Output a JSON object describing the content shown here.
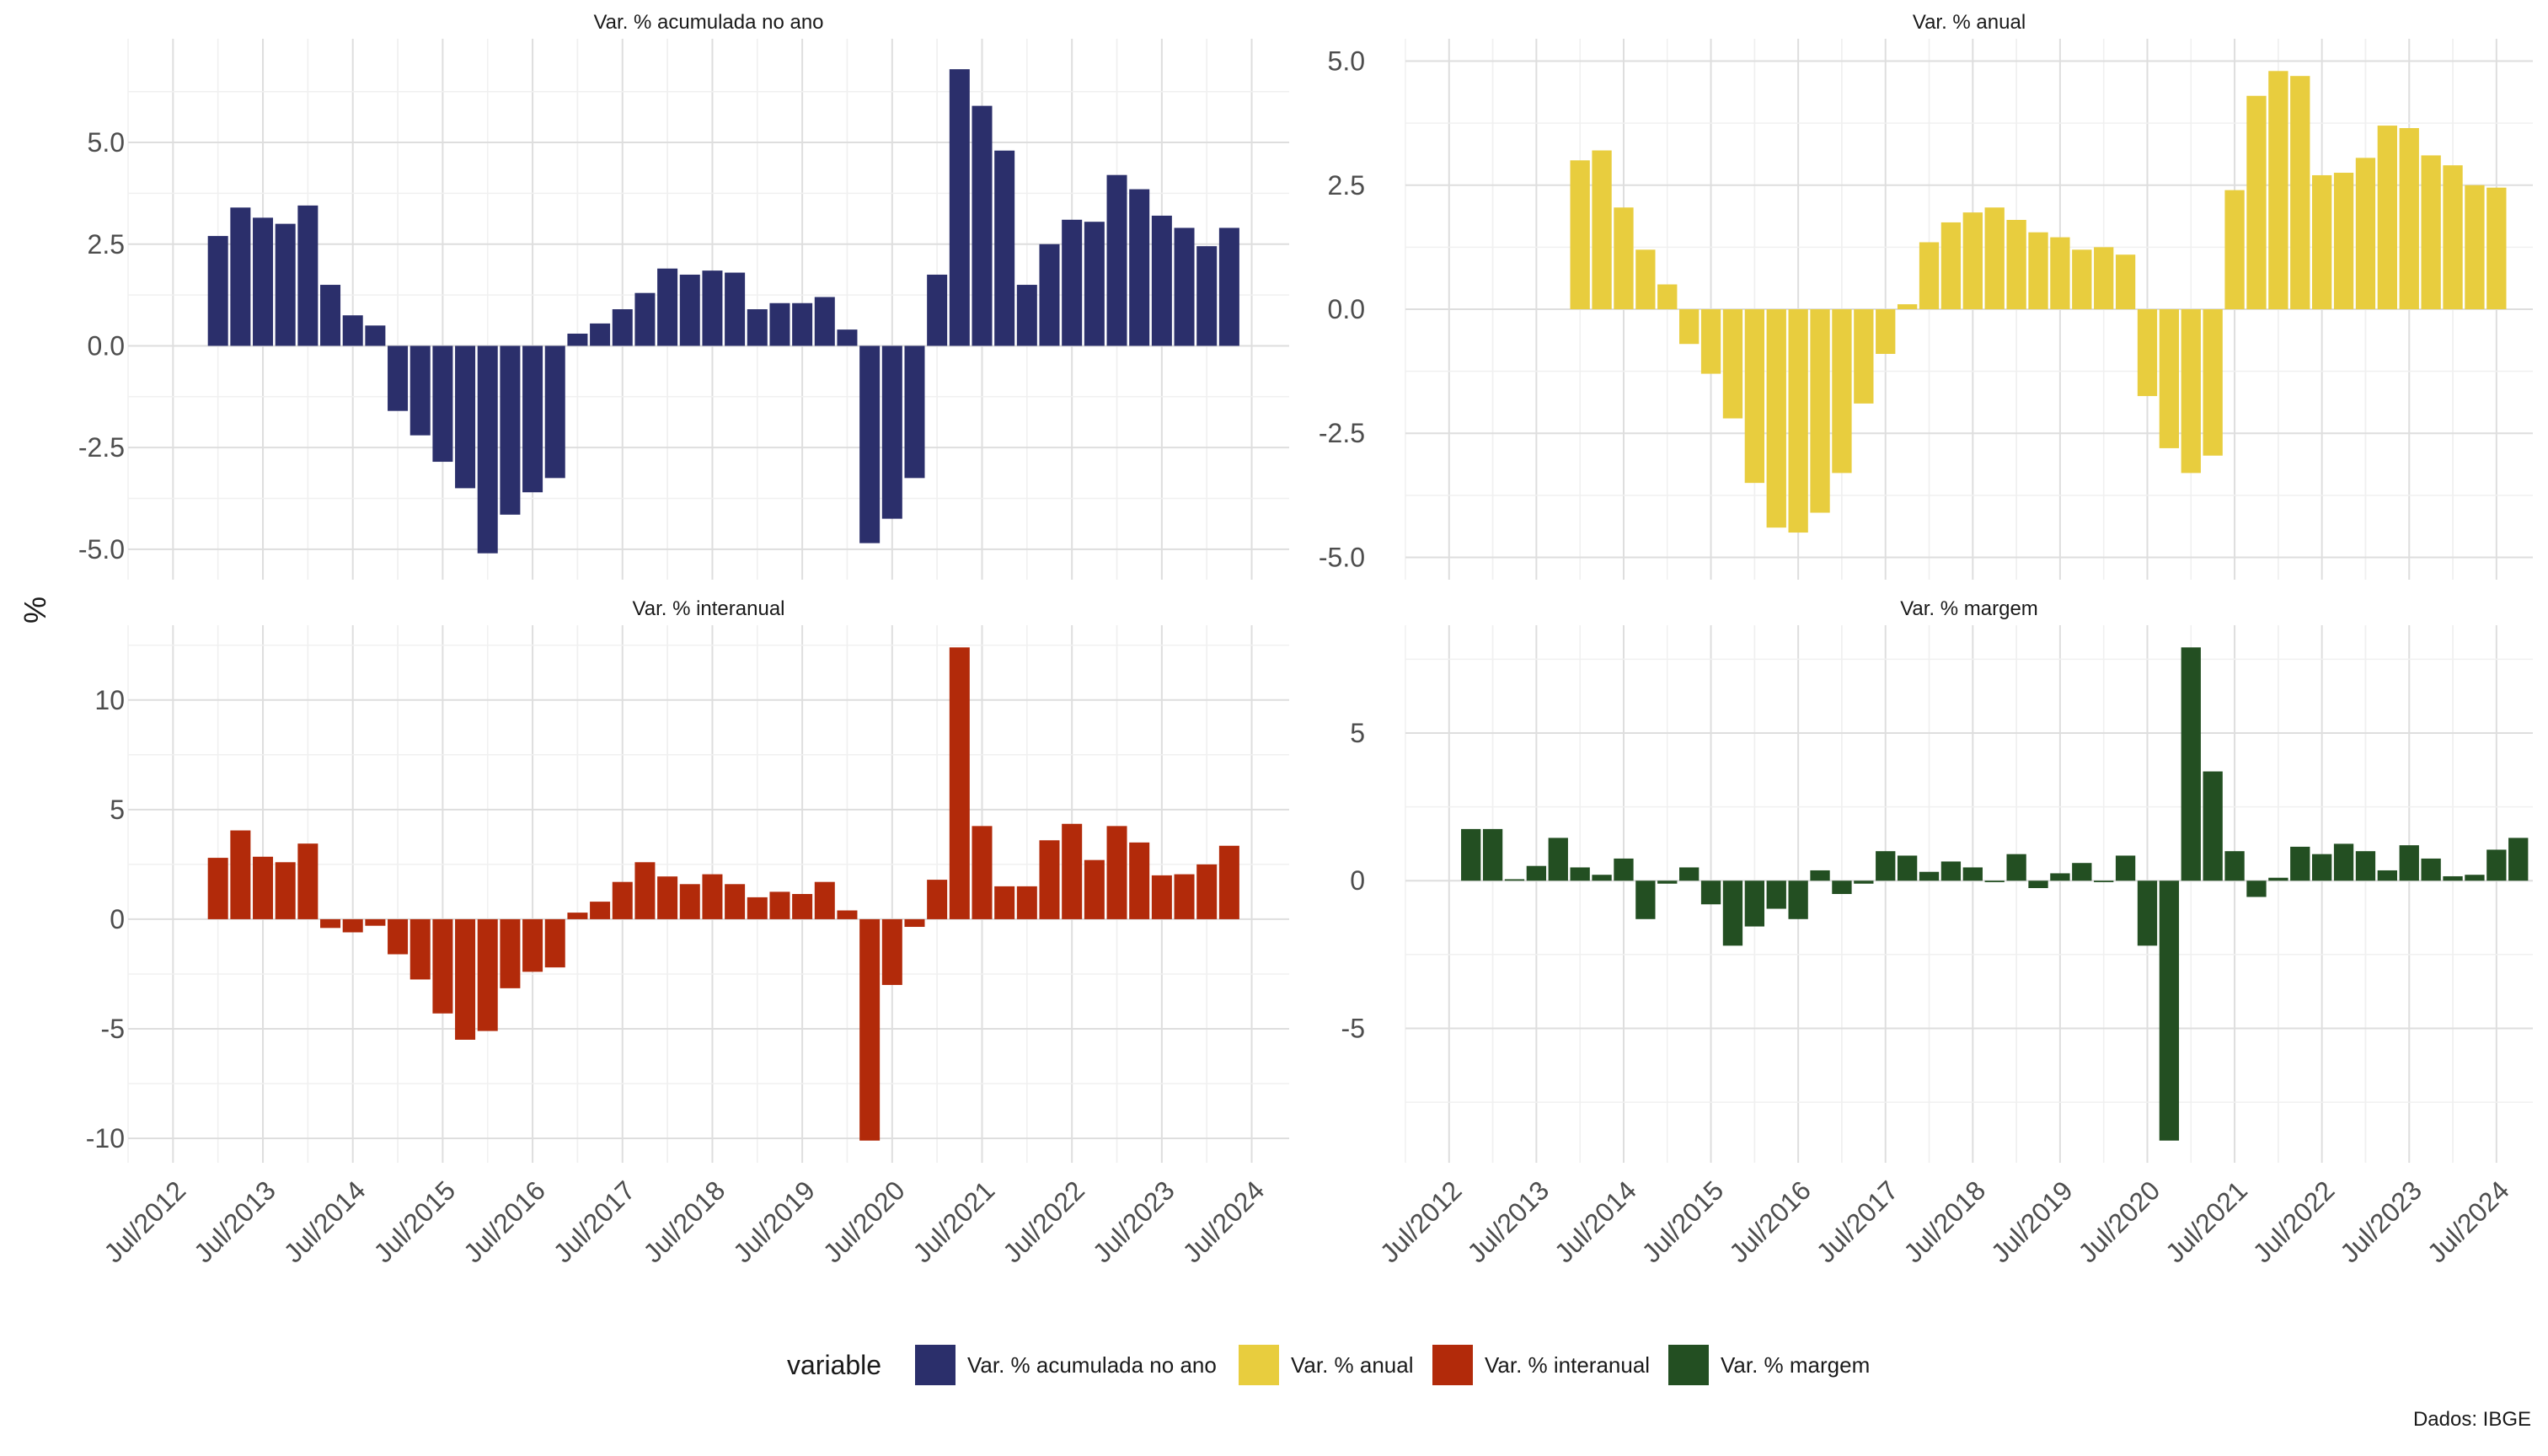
{
  "figure": {
    "ylabel": "%",
    "legend": {
      "title": "variable",
      "items": [
        {
          "label": "Var. % acumulada no ano",
          "color": "#2b2f6b"
        },
        {
          "label": "Var. % anual",
          "color": "#e8cd3e"
        },
        {
          "label": "Var. % interanual",
          "color": "#b22a0a"
        },
        {
          "label": "Var. % margem",
          "color": "#234f22"
        }
      ]
    },
    "caption": "Dados: IBGE"
  },
  "chart_data": [
    {
      "type": "bar",
      "title": "Var. % acumulada no ano",
      "color": "#2b2f6b",
      "x_ticks": [
        "Jul/2012",
        "Jul/2013",
        "Jul/2014",
        "Jul/2015",
        "Jul/2016",
        "Jul/2017",
        "Jul/2018",
        "Jul/2019",
        "Jul/2020",
        "Jul/2021",
        "Jul/2022",
        "Jul/2023",
        "Jul/2024"
      ],
      "x_start": "Jan/2013",
      "x_step_months": 3,
      "y_ticks": [
        "-5.0",
        "-2.5",
        "0.0",
        "2.5",
        "5.0"
      ],
      "ylim": [
        -5.2,
        7.0
      ],
      "values": [
        2.7,
        3.4,
        3.15,
        3.0,
        3.45,
        1.5,
        0.75,
        0.5,
        -1.6,
        -2.2,
        -2.85,
        -3.5,
        -5.1,
        -4.15,
        -3.6,
        -3.25,
        0.3,
        0.55,
        0.9,
        1.3,
        1.9,
        1.75,
        1.85,
        1.8,
        0.9,
        1.05,
        1.05,
        1.2,
        0.4,
        -4.85,
        -4.25,
        -3.25,
        1.75,
        6.8,
        5.9,
        4.8,
        1.5,
        2.5,
        3.1,
        3.05,
        4.2,
        3.85,
        3.2,
        2.9,
        2.45,
        2.9
      ]
    },
    {
      "type": "bar",
      "title": "Var. % anual",
      "color": "#e8cd3e",
      "x_ticks": [
        "Jul/2012",
        "Jul/2013",
        "Jul/2014",
        "Jul/2015",
        "Jul/2016",
        "Jul/2017",
        "Jul/2018",
        "Jul/2019",
        "Jul/2020",
        "Jul/2021",
        "Jul/2022",
        "Jul/2023",
        "Jul/2024"
      ],
      "x_start": "Jan/2014",
      "x_step_months": 3,
      "y_ticks": [
        "-5.0",
        "-2.5",
        "0.0",
        "2.5",
        "5.0"
      ],
      "ylim": [
        -5.0,
        5.0
      ],
      "values": [
        3.0,
        3.2,
        2.05,
        1.2,
        0.5,
        -0.7,
        -1.3,
        -2.2,
        -3.5,
        -4.4,
        -4.5,
        -4.1,
        -3.3,
        -1.9,
        -0.9,
        0.1,
        1.35,
        1.75,
        1.95,
        2.05,
        1.8,
        1.55,
        1.45,
        1.2,
        1.25,
        1.1,
        -1.75,
        -2.8,
        -3.3,
        -2.95,
        2.4,
        4.3,
        4.8,
        4.7,
        2.7,
        2.75,
        3.05,
        3.7,
        3.65,
        3.1,
        2.9,
        2.5,
        2.45
      ]
    },
    {
      "type": "bar",
      "title": "Var. % interanual",
      "color": "#b22a0a",
      "x_ticks": [
        "Jul/2012",
        "Jul/2013",
        "Jul/2014",
        "Jul/2015",
        "Jul/2016",
        "Jul/2017",
        "Jul/2018",
        "Jul/2019",
        "Jul/2020",
        "Jul/2021",
        "Jul/2022",
        "Jul/2023",
        "Jul/2024"
      ],
      "x_start": "Jan/2013",
      "x_step_months": 3,
      "y_ticks": [
        "-10",
        "-5",
        "0",
        "5",
        "10"
      ],
      "ylim": [
        -10.1,
        12.4
      ],
      "values": [
        2.8,
        4.05,
        2.85,
        2.6,
        3.45,
        -0.4,
        -0.6,
        -0.3,
        -1.6,
        -2.75,
        -4.3,
        -5.5,
        -5.1,
        -3.15,
        -2.4,
        -2.2,
        0.3,
        0.8,
        1.7,
        2.6,
        1.95,
        1.6,
        2.05,
        1.6,
        1.0,
        1.25,
        1.15,
        1.7,
        0.4,
        -10.1,
        -3.0,
        -0.35,
        1.8,
        12.4,
        4.25,
        1.5,
        1.5,
        3.6,
        4.35,
        2.7,
        4.25,
        3.5,
        2.0,
        2.05,
        2.5,
        3.35
      ]
    },
    {
      "type": "bar",
      "title": "Var. % margem",
      "color": "#234f22",
      "x_ticks": [
        "Jul/2012",
        "Jul/2013",
        "Jul/2014",
        "Jul/2015",
        "Jul/2016",
        "Jul/2017",
        "Jul/2018",
        "Jul/2019",
        "Jul/2020",
        "Jul/2021",
        "Jul/2022",
        "Jul/2023",
        "Jul/2024"
      ],
      "x_start": "Oct/2012",
      "x_step_months": 3,
      "y_ticks": [
        "-5",
        "0",
        "5"
      ],
      "ylim": [
        -8.8,
        7.9
      ],
      "values": [
        1.75,
        1.75,
        0.05,
        0.5,
        1.45,
        0.45,
        0.2,
        0.75,
        -1.3,
        -0.1,
        0.45,
        -0.8,
        -2.2,
        -1.55,
        -0.95,
        -1.3,
        0.35,
        -0.45,
        -0.1,
        1.0,
        0.85,
        0.3,
        0.65,
        0.45,
        -0.05,
        0.9,
        -0.25,
        0.25,
        0.6,
        -0.05,
        0.85,
        -2.2,
        -8.8,
        7.9,
        3.7,
        1.0,
        -0.55,
        0.1,
        1.15,
        0.9,
        1.25,
        1.0,
        0.35,
        1.2,
        0.75,
        0.15,
        0.2,
        1.05,
        1.45
      ]
    }
  ]
}
